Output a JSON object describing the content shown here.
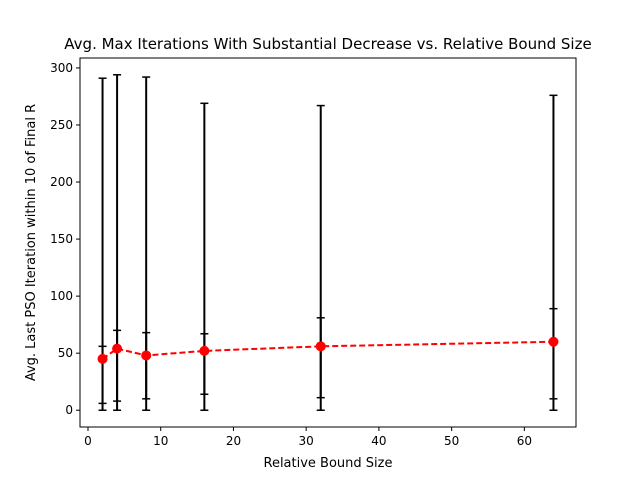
{
  "chart_data": {
    "type": "line",
    "title": "Avg. Max Iterations With Substantial Decrease vs. Relative Bound Size",
    "xlabel": "Relative Bound Size",
    "ylabel": "Avg. Last PSO Iteration within 10 of Final R",
    "xlim": [
      -1.1,
      67.1
    ],
    "ylim": [
      -14.7,
      308.7
    ],
    "xticks": [
      0,
      10,
      20,
      30,
      40,
      50,
      60
    ],
    "yticks": [
      0,
      50,
      100,
      150,
      200,
      250,
      300
    ],
    "grid": false,
    "series": [
      {
        "x": [
          2,
          4,
          8,
          16,
          32,
          64
        ],
        "y": [
          45,
          54,
          48,
          52,
          56,
          60
        ],
        "color": "#ff0000",
        "linestyle": "dashed",
        "marker": "circle"
      }
    ],
    "errorbars": {
      "color": "#000000",
      "full_range": [
        {
          "x": 2,
          "low": 0,
          "high": 291
        },
        {
          "x": 4,
          "low": 0,
          "high": 294
        },
        {
          "x": 8,
          "low": 0,
          "high": 292
        },
        {
          "x": 16,
          "low": 0,
          "high": 269
        },
        {
          "x": 32,
          "low": 0,
          "high": 267
        },
        {
          "x": 64,
          "low": 0,
          "high": 276
        }
      ],
      "std_range": [
        {
          "x": 2,
          "low": 6,
          "high": 56
        },
        {
          "x": 4,
          "low": 8,
          "high": 70
        },
        {
          "x": 8,
          "low": 10,
          "high": 68
        },
        {
          "x": 16,
          "low": 14,
          "high": 67
        },
        {
          "x": 32,
          "low": 11,
          "high": 81
        },
        {
          "x": 64,
          "low": 10,
          "high": 89
        }
      ]
    }
  }
}
